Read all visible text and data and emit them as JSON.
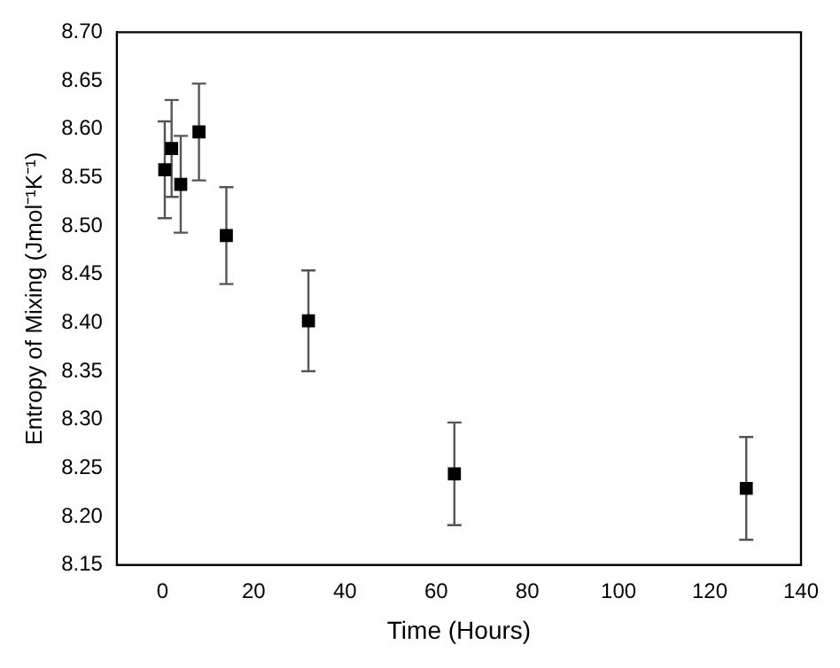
{
  "chart_data": {
    "type": "scatter",
    "xlabel": "Time (Hours)",
    "ylabel": "Entropy of Mixing (Jmol⁻¹K⁻¹)",
    "x": [
      0.5,
      2,
      4,
      8,
      14,
      32,
      64,
      128
    ],
    "series": [
      {
        "color": "#000000",
        "values": [
          8.558,
          8.58,
          8.543,
          8.597,
          8.49,
          8.402,
          8.244,
          8.229
        ],
        "errors": [
          0.05,
          0.05,
          0.05,
          0.05,
          0.05,
          0.052,
          0.053,
          0.053
        ]
      }
    ],
    "xlim": [
      -10,
      140
    ],
    "xticks": [
      0,
      20,
      40,
      60,
      80,
      100,
      120,
      140
    ],
    "ylim": [
      8.15,
      8.7
    ],
    "yticks": [
      {
        "value": 8.15,
        "label": "8.15"
      },
      {
        "value": 8.2,
        "label": "8.20"
      },
      {
        "value": 8.25,
        "label": "8.25"
      },
      {
        "value": 8.3,
        "label": "8.30"
      },
      {
        "value": 8.35,
        "label": "8.35"
      },
      {
        "value": 8.4,
        "label": "8.40"
      },
      {
        "value": 8.45,
        "label": "8.45"
      },
      {
        "value": 8.5,
        "label": "8.50"
      },
      {
        "value": 8.55,
        "label": "8.55"
      },
      {
        "value": 8.6,
        "label": "8.60"
      },
      {
        "value": 8.65,
        "label": "8.65"
      },
      {
        "value": 8.7,
        "label": "8.70"
      }
    ],
    "grid": false,
    "legend": false,
    "marker": "square"
  }
}
